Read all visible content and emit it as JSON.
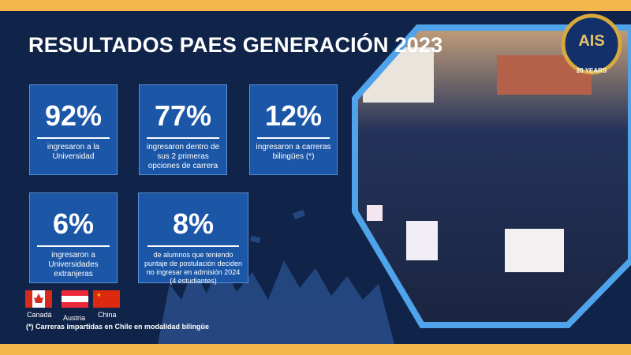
{
  "header": {
    "title": "RESULTADOS PAES GENERACIÓN 2023"
  },
  "stats": [
    {
      "value": "92%",
      "label": "ingresaron a la Universidad"
    },
    {
      "value": "77%",
      "label": "ingresaron dentro de sus 2 primeras opciones de carrera"
    },
    {
      "value": "12%",
      "label": "ingresaron a carreras bilingües (*)"
    },
    {
      "value": "6%",
      "label": "ingresaron a Universidades extranjeras"
    },
    {
      "value": "8%",
      "label": "de alumnos que teniendo puntaje de postulación deciden no ingresar en admisión 2024 (4 estudiantes)"
    }
  ],
  "countries": [
    "Canadá",
    "Austria",
    "China"
  ],
  "footnote": "(*) Carreras impartidas en Chile en modalidad bilingüe",
  "logo": {
    "text": "AIS",
    "years": "20 YEARS"
  }
}
